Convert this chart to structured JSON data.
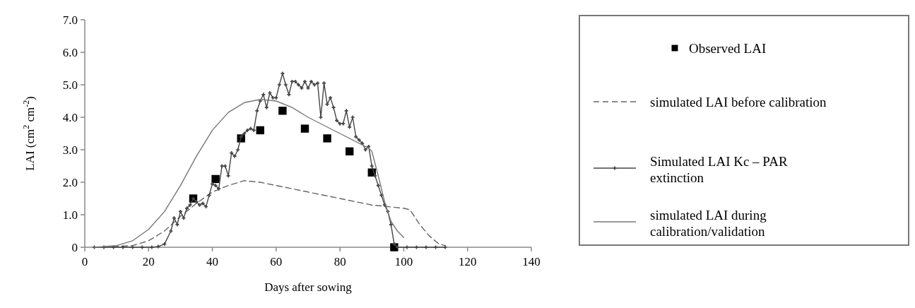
{
  "chart_data": {
    "type": "line",
    "xlabel": "Days after sowing",
    "ylabel": "LAI (cm$^{2}$ cm$^{-2}$)",
    "xlim": [
      0,
      140
    ],
    "xticks": [
      0,
      20,
      40,
      60,
      80,
      100,
      120,
      140
    ],
    "ylim": [
      0,
      7
    ],
    "yticks": [
      0,
      {
        "value": 1,
        "label": "1.0"
      },
      {
        "value": 2,
        "label": "2.0"
      },
      {
        "value": 3,
        "label": "3.0"
      },
      {
        "value": 4,
        "label": "4.0"
      },
      {
        "value": 5,
        "label": "5.0"
      },
      {
        "value": 6,
        "label": "6.0"
      },
      {
        "value": 7,
        "label": "7.0"
      }
    ],
    "grid": false,
    "legend": "right",
    "series": [
      {
        "name": "Observed LAI",
        "type": "scatter",
        "marker": "square",
        "color": "#000000",
        "x": [
          34,
          41,
          49,
          55,
          62,
          69,
          76,
          83,
          90,
          97
        ],
        "values": [
          1.5,
          2.1,
          3.35,
          3.6,
          4.2,
          3.65,
          3.35,
          2.95,
          2.3,
          0
        ]
      },
      {
        "name": "simulated LAI before calibration",
        "line_style": "dashed",
        "marker": "none",
        "color": "#666666",
        "x": [
          3,
          15,
          20,
          25,
          30,
          35,
          40,
          45,
          50,
          55,
          60,
          70,
          80,
          90,
          100,
          102,
          105,
          108,
          111,
          113
        ],
        "values": [
          0,
          0.05,
          0.2,
          0.5,
          0.95,
          1.35,
          1.7,
          1.9,
          2.05,
          2.0,
          1.9,
          1.7,
          1.5,
          1.3,
          1.2,
          1.15,
          0.7,
          0.35,
          0.1,
          0.05
        ]
      },
      {
        "name": "Simulated LAI Kc – PAR extinction",
        "line_style": "solid",
        "marker": "cross",
        "color": "#444444",
        "x": [
          3,
          6,
          9,
          12,
          15,
          18,
          21,
          23,
          25,
          27,
          28,
          29,
          30,
          31,
          32,
          33,
          34,
          35,
          36,
          37,
          38,
          39,
          40,
          41,
          42,
          43,
          44,
          45,
          46,
          47,
          48,
          49,
          50,
          51,
          52,
          53,
          54,
          55,
          56,
          57,
          58,
          59,
          60,
          61,
          62,
          63,
          64,
          65,
          66,
          67,
          68,
          69,
          70,
          71,
          72,
          73,
          74,
          75,
          76,
          77,
          78,
          79,
          80,
          81,
          82,
          83,
          84,
          85,
          86,
          87,
          88,
          89,
          90,
          91,
          92,
          93,
          94,
          95,
          96,
          97,
          98,
          101,
          104,
          107,
          110,
          113
        ],
        "values": [
          0,
          0,
          0,
          0,
          0,
          0,
          0,
          0.02,
          0.1,
          0.5,
          0.9,
          0.7,
          1.1,
          0.9,
          1.2,
          1.3,
          1.5,
          1.4,
          1.3,
          1.35,
          1.25,
          1.6,
          1.95,
          1.9,
          1.8,
          2.5,
          2.5,
          2.2,
          2.9,
          2.8,
          3.0,
          3.4,
          3.5,
          3.6,
          3.65,
          3.6,
          4.2,
          4.5,
          4.7,
          4.3,
          4.75,
          4.6,
          4.6,
          5.0,
          5.35,
          5.0,
          4.7,
          5.1,
          5.1,
          5.0,
          4.9,
          5.1,
          4.9,
          5.1,
          5.0,
          5.05,
          4.0,
          5.05,
          4.4,
          4.6,
          4.3,
          3.9,
          3.8,
          3.8,
          4.2,
          3.7,
          4.0,
          3.4,
          3.3,
          3.2,
          3.0,
          3.1,
          2.5,
          2.2,
          1.9,
          1.6,
          1.3,
          1.1,
          0.7,
          0.1,
          0,
          0,
          0,
          0,
          0,
          0
        ]
      },
      {
        "name": "simulated LAI during calibration/validation",
        "line_style": "solid",
        "marker": "none",
        "color": "#777777",
        "x": [
          3,
          10,
          15,
          20,
          25,
          30,
          35,
          40,
          45,
          50,
          55,
          60,
          65,
          70,
          80,
          89,
          90,
          92,
          94,
          96,
          98,
          100
        ],
        "values": [
          0,
          0.05,
          0.2,
          0.55,
          1.1,
          1.9,
          2.8,
          3.6,
          4.15,
          4.45,
          4.55,
          4.5,
          4.3,
          4.0,
          3.5,
          3.05,
          2.95,
          2.2,
          1.4,
          0.8,
          0.5,
          0.3
        ]
      }
    ]
  }
}
